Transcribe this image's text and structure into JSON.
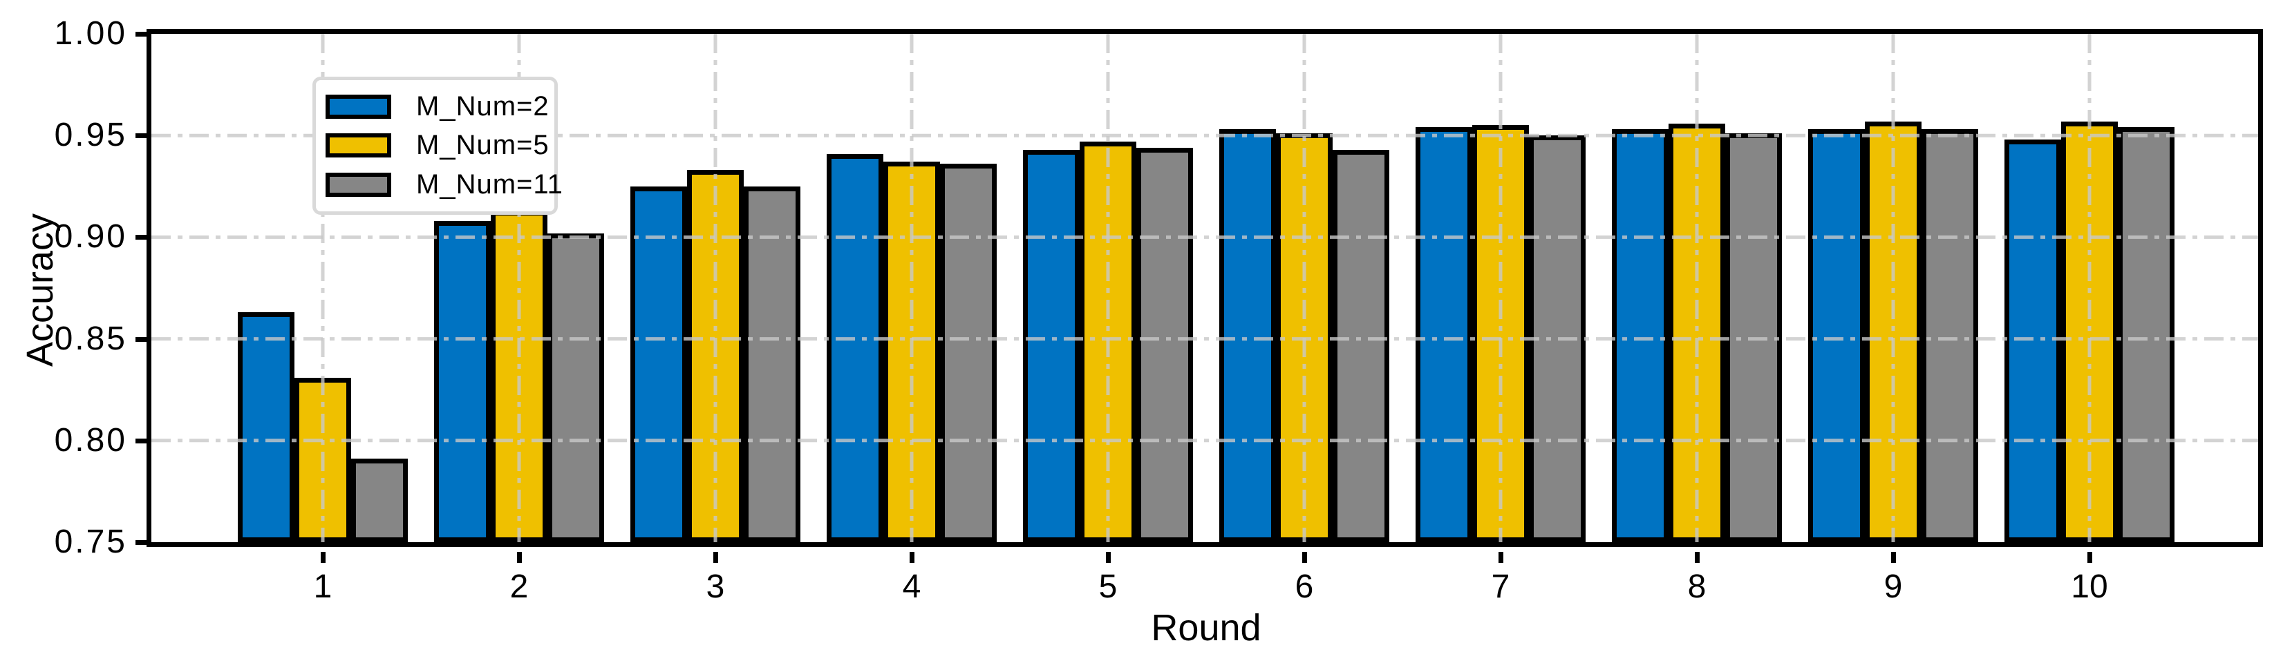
{
  "chart_data": {
    "type": "bar",
    "title": "",
    "xlabel": "Round",
    "ylabel": "Accuracy",
    "categories": [
      "1",
      "2",
      "3",
      "4",
      "5",
      "6",
      "7",
      "8",
      "9",
      "10"
    ],
    "series": [
      {
        "name": "M_Num=2",
        "color": "#0073C2",
        "values": [
          0.863,
          0.908,
          0.925,
          0.941,
          0.943,
          0.953,
          0.954,
          0.953,
          0.953,
          0.948
        ]
      },
      {
        "name": "M_Num=5",
        "color": "#EFC000",
        "values": [
          0.831,
          0.913,
          0.933,
          0.937,
          0.947,
          0.951,
          0.955,
          0.956,
          0.957,
          0.957
        ]
      },
      {
        "name": "M_Num=11",
        "color": "#868686",
        "values": [
          0.791,
          0.902,
          0.925,
          0.936,
          0.944,
          0.943,
          0.95,
          0.951,
          0.953,
          0.954
        ]
      }
    ],
    "ylim": [
      0.75,
      1.0
    ],
    "ytick_labels": [
      "1.00",
      "0.95",
      "0.90",
      "0.85",
      "0.80",
      "0.75"
    ],
    "ytick_values": [
      1.0,
      0.95,
      0.9,
      0.85,
      0.8,
      0.75
    ],
    "grid": "dash-dot gridlines on both axes, drawn over bars",
    "grid_color": "#c9c9c9",
    "legend_position": "upper-left",
    "legend_border_color": "#d9d9d9",
    "bar_edge_color": "#000000",
    "background_color": "#ffffff"
  }
}
